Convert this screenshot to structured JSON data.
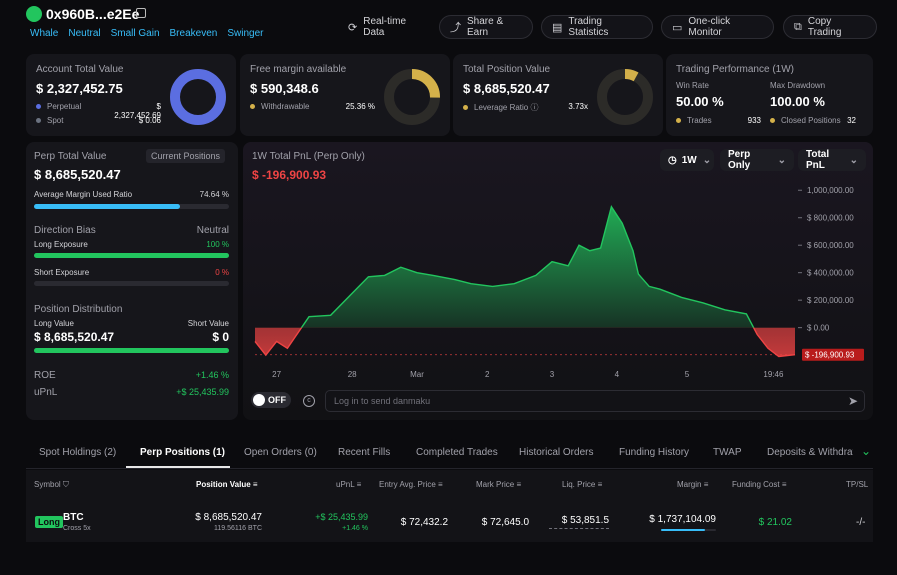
{
  "header": {
    "address": "0x960B...e2Ee",
    "tags": [
      "Whale",
      "Neutral",
      "Small Gain",
      "Breakeven",
      "Swinger"
    ],
    "buttons": {
      "realtime": "Real-time Data",
      "share": "Share & Earn",
      "stats": "Trading Statistics",
      "monitor": "One-click Monitor",
      "copy": "Copy Trading"
    }
  },
  "account": {
    "title": "Account Total Value",
    "value": "$ 2,327,452.75",
    "perp_label": "Perpetual",
    "perp_value": "$ 2,327,452.69",
    "spot_label": "Spot",
    "spot_value": "$ 0.06",
    "perp_share": 1.0
  },
  "margin": {
    "title": "Free margin available",
    "value": "$ 590,348.6",
    "withdrawable_label": "Withdrawable",
    "withdrawable_value": "25.36 %",
    "withdrawable_share": 0.2536
  },
  "position": {
    "title": "Total Position Value",
    "value": "$ 8,685,520.47",
    "leverage_label": "Leverage Ratio",
    "leverage_value": "3.73x",
    "ring_share": 0.08
  },
  "performance": {
    "title": "Trading Performance (1W)",
    "win_rate_label": "Win Rate",
    "win_rate": "50.00 %",
    "max_dd_label": "Max Drawdown",
    "max_dd": "100.00 %",
    "trades_label": "Trades",
    "trades": "933",
    "closed_label": "Closed Positions",
    "closed": "32"
  },
  "perp": {
    "title": "Perp Total Value",
    "current_positions": "Current Positions",
    "value": "$ 8,685,520.47",
    "avg_margin_label": "Average Margin Used Ratio",
    "avg_margin": "74.64 %",
    "avg_margin_fraction": 0.7464,
    "direction_label": "Direction Bias",
    "direction": "Neutral",
    "long_exp_label": "Long Exposure",
    "long_exp": "100 %",
    "long_exp_fraction": 1.0,
    "short_exp_label": "Short Exposure",
    "short_exp": "0 %",
    "short_exp_fraction": 0.0,
    "distribution_label": "Position Distribution",
    "long_value_label": "Long Value",
    "long_value": "$ 8,685,520.47",
    "short_value_label": "Short Value",
    "short_value": "$ 0",
    "long_fraction": 1.0,
    "roe_label": "ROE",
    "roe": "+1.46 %",
    "upnl_label": "uPnL",
    "upnl": "+$ 25,435.99"
  },
  "pnl": {
    "title": "1W Total PnL (Perp Only)",
    "value": "$ -196,900.93",
    "period": "1W",
    "filter": "Perp Only",
    "metric": "Total PnL",
    "toggle": "OFF",
    "danmaku_placeholder": "Log in to send danmaku"
  },
  "chart_data": {
    "type": "area",
    "title": "",
    "xlabel": "",
    "ylabel": "",
    "x_ticks": [
      "27",
      "28",
      "Mar",
      "2",
      "3",
      "4",
      "5",
      "19:46"
    ],
    "y_ticks": [
      "1,000,000.00",
      "$ 800,000.00",
      "$ 600,000.00",
      "$ 400,000.00",
      "$ 200,000.00",
      "$ 0.00"
    ],
    "y_tick_values": [
      1000000,
      800000,
      600000,
      400000,
      200000,
      0
    ],
    "ylim": [
      -250000,
      1060000
    ],
    "xlim": [
      0,
      100
    ],
    "current_label": "$ -196,900.93",
    "current_value": -196900.93,
    "series": [
      {
        "x": [
          0,
          2,
          4,
          6,
          10,
          14,
          18,
          21,
          24,
          27,
          30,
          33,
          37,
          40,
          44,
          48,
          52,
          55,
          58,
          60,
          62,
          64,
          66,
          68,
          70,
          71,
          73,
          75,
          77,
          79,
          83,
          87,
          91,
          93,
          95,
          97,
          100
        ],
        "y": [
          -100000,
          -200000,
          -100000,
          -150000,
          80000,
          90000,
          250000,
          370000,
          380000,
          440000,
          400000,
          380000,
          350000,
          320000,
          300000,
          320000,
          380000,
          480000,
          450000,
          600000,
          560000,
          580000,
          880000,
          760000,
          560000,
          390000,
          300000,
          280000,
          250000,
          220000,
          180000,
          130000,
          100000,
          -50000,
          -150000,
          -210000,
          -196900
        ]
      }
    ]
  },
  "tabs": [
    "Spot Holdings (2)",
    "Perp Positions (1)",
    "Open Orders (0)",
    "Recent Fills",
    "Completed Trades",
    "Historical Orders",
    "Funding History",
    "TWAP",
    "Deposits & Withdrav"
  ],
  "table": {
    "headers": {
      "symbol": "Symbol",
      "position_value": "Position Value",
      "upnl": "uPnL",
      "entry": "Entry Avg. Price",
      "mark": "Mark Price",
      "liq": "Liq. Price",
      "margin": "Margin",
      "funding": "Funding Cost",
      "tpsl": "TP/SL"
    },
    "row": {
      "side": "Long",
      "symbol": "BTC",
      "mode": "Cross 5x",
      "position_value": "$ 8,685,520.47",
      "position_size": "119.56116 BTC",
      "upnl": "+$ 25,435.99",
      "upnl_pct": "+1.46 %",
      "entry": "$ 72,432.2",
      "mark": "$ 72,645.0",
      "liq": "$ 53,851.5",
      "margin": "$ 1,737,104.09",
      "margin_fraction": 0.8,
      "funding": "$ 21.02",
      "tpsl": "-/-"
    }
  },
  "colors": {
    "accent_blue": "#38bdf8",
    "green": "#22c55e",
    "red": "#ef4444",
    "donut_blue": "#5b6ee1",
    "donut_gold": "#d4b14a"
  }
}
